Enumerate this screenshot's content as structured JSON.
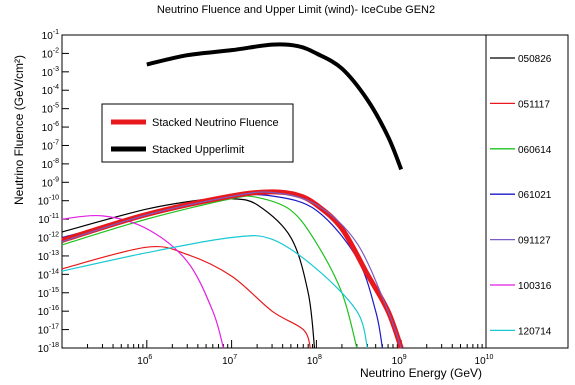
{
  "chart_data": {
    "type": "line",
    "title": "Neutrino Fluence and Upper Limit (wind)- IceCube GEN2",
    "xlabel": "Neutrino Energy (GeV)",
    "ylabel": "Neutrino Fluence (GeV/cm²)",
    "xscale": "log",
    "yscale": "log",
    "xlim": [
      100000.0,
      10000000000.0
    ],
    "ylim": [
      1e-18,
      0.1
    ],
    "x_tick_exponents": [
      6,
      7,
      8,
      9,
      10
    ],
    "y_tick_exponents": [
      -18,
      -17,
      -16,
      -15,
      -14,
      -13,
      -12,
      -11,
      -10,
      -9,
      -8,
      -7,
      -6,
      -5,
      -4,
      -3,
      -2,
      -1
    ],
    "grid": false,
    "series": [
      {
        "name": "Stacked Neutrino Fluence",
        "color": "#e8191c",
        "points": [
          [
            100000.0,
            7e-13
          ],
          [
            1000000.0,
            1.8e-11
          ],
          [
            10000000.0,
            1.8e-10
          ],
          [
            30000000.0,
            3e-10
          ],
          [
            60000000.0,
            2e-10
          ],
          [
            100000000.0,
            6e-11
          ],
          [
            200000000.0,
            3e-12
          ],
          [
            400000000.0,
            1e-14
          ],
          [
            700000000.0,
            1e-16
          ],
          [
            1000000000.0,
            1e-18
          ]
        ]
      },
      {
        "name": "Stacked Upperlimit",
        "color": "#000000",
        "points": [
          [
            1000000.0,
            0.0025
          ],
          [
            3000000.0,
            0.008
          ],
          [
            10000000.0,
            0.015
          ],
          [
            30000000.0,
            0.03
          ],
          [
            60000000.0,
            0.025
          ],
          [
            100000000.0,
            0.01
          ],
          [
            200000000.0,
            0.0015
          ],
          [
            400000000.0,
            3e-05
          ],
          [
            700000000.0,
            3e-07
          ],
          [
            1000000000.0,
            5e-09
          ]
        ]
      },
      {
        "name": "050826",
        "color": "#000000",
        "points": [
          [
            100000.0,
            2e-12
          ],
          [
            1000000.0,
            3.5e-11
          ],
          [
            5000000.0,
            1.2e-10
          ],
          [
            10000000.0,
            1.3e-10
          ],
          [
            20000000.0,
            6e-11
          ],
          [
            50000000.0,
            1e-12
          ],
          [
            80000000.0,
            1e-15
          ],
          [
            95000000.0,
            1e-18
          ]
        ]
      },
      {
        "name": "051117",
        "color": "#e8191c",
        "points": [
          [
            100000.0,
            2e-14
          ],
          [
            1000000.0,
            3e-13
          ],
          [
            3000000.0,
            1.2e-13
          ],
          [
            10000000.0,
            8e-15
          ],
          [
            30000000.0,
            1e-16
          ],
          [
            70000000.0,
            1e-17
          ],
          [
            85000000.0,
            1e-18
          ]
        ]
      },
      {
        "name": "060614",
        "color": "#1fc21f",
        "points": [
          [
            100000.0,
            4e-13
          ],
          [
            1000000.0,
            1e-11
          ],
          [
            10000000.0,
            1.3e-10
          ],
          [
            20000000.0,
            1.5e-10
          ],
          [
            50000000.0,
            3e-11
          ],
          [
            100000000.0,
            5e-13
          ],
          [
            200000000.0,
            1e-15
          ],
          [
            300000000.0,
            1e-18
          ]
        ]
      },
      {
        "name": "061021",
        "color": "#1a1ac8",
        "points": [
          [
            100000.0,
            1e-12
          ],
          [
            1000000.0,
            1.5e-11
          ],
          [
            10000000.0,
            1.5e-10
          ],
          [
            30000000.0,
            1.8e-10
          ],
          [
            100000000.0,
            3e-11
          ],
          [
            300000000.0,
            8e-14
          ],
          [
            500000000.0,
            1e-16
          ],
          [
            600000000.0,
            1e-18
          ]
        ]
      },
      {
        "name": "091127",
        "color": "#7b5cc4",
        "points": [
          [
            100000.0,
            6e-13
          ],
          [
            1000000.0,
            1.7e-11
          ],
          [
            10000000.0,
            1.7e-10
          ],
          [
            30000000.0,
            2.8e-10
          ],
          [
            100000000.0,
            6e-11
          ],
          [
            300000000.0,
            5e-13
          ],
          [
            700000000.0,
            1e-16
          ],
          [
            1000000000.0,
            1e-18
          ]
        ]
      },
      {
        "name": "100316",
        "color": "#e21fe2",
        "points": [
          [
            100000.0,
            1e-11
          ],
          [
            300000.0,
            1.5e-11
          ],
          [
            1000000.0,
            3e-12
          ],
          [
            3000000.0,
            5e-14
          ],
          [
            6000000.0,
            1e-16
          ],
          [
            8000000.0,
            1e-18
          ]
        ]
      },
      {
        "name": "120714",
        "color": "#19c8d2",
        "points": [
          [
            100000.0,
            1.5e-14
          ],
          [
            1000000.0,
            1.5e-13
          ],
          [
            10000000.0,
            1e-12
          ],
          [
            30000000.0,
            8e-13
          ],
          [
            100000000.0,
            2e-14
          ],
          [
            300000000.0,
            1e-16
          ],
          [
            400000000.0,
            1e-18
          ]
        ]
      }
    ]
  }
}
